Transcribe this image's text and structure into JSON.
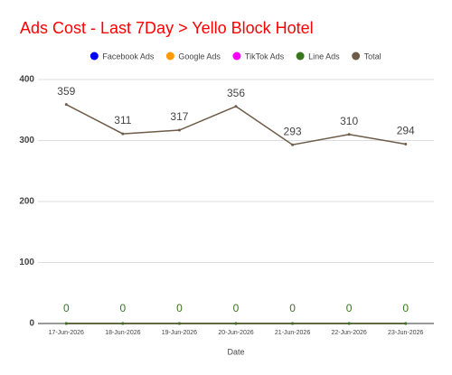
{
  "chart_data": {
    "type": "line",
    "title": "Ads Cost - Last 7Day > Yello Block Hotel",
    "x_label": "Date",
    "categories": [
      "17-Jun-2026",
      "18-Jun-2026",
      "19-Jun-2026",
      "20-Jun-2026",
      "21-Jun-2026",
      "22-Jun-2026",
      "23-Jun-2026"
    ],
    "series": [
      {
        "name": "Facebook Ads",
        "color": "#0000ff",
        "values": [
          0,
          0,
          0,
          0,
          0,
          0,
          0
        ]
      },
      {
        "name": "Google Ads",
        "color": "#ff9900",
        "values": [
          0,
          0,
          0,
          0,
          0,
          0,
          0
        ]
      },
      {
        "name": "TikTok Ads",
        "color": "#ff00ff",
        "values": [
          0,
          0,
          0,
          0,
          0,
          0,
          0
        ]
      },
      {
        "name": "Line Ads",
        "color": "#38761d",
        "values": [
          0,
          0,
          0,
          0,
          0,
          0,
          0
        ],
        "data_labels": true
      },
      {
        "name": "Total",
        "color": "#6e5c48",
        "values": [
          359,
          311,
          317,
          356,
          293,
          310,
          294
        ],
        "data_labels": true
      }
    ],
    "ylim": [
      0,
      400
    ],
    "yticks": [
      0,
      100,
      200,
      300,
      400
    ],
    "grid": true,
    "legend": "top"
  }
}
